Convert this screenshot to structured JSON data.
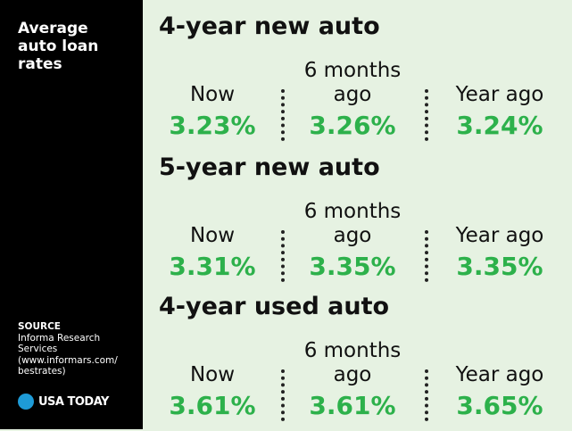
{
  "sidebar": {
    "title": "Average auto loan rates",
    "source_label": "SOURCE",
    "source_text": "Informa Research Services (www.informars.com/ bestrates)",
    "logo": "USA TODAY"
  },
  "sections": [
    {
      "heading": "4-year new auto",
      "columns": [
        {
          "label": "Now",
          "value": "3.23%"
        },
        {
          "label": "6 months ago",
          "value": "3.26%"
        },
        {
          "label": "Year ago",
          "value": "3.24%"
        }
      ]
    },
    {
      "heading": "5-year new auto",
      "columns": [
        {
          "label": "Now",
          "value": "3.31%"
        },
        {
          "label": "6 months ago",
          "value": "3.35%"
        },
        {
          "label": "Year ago",
          "value": "3.35%"
        }
      ]
    },
    {
      "heading": "4-year used auto",
      "columns": [
        {
          "label": "Now",
          "value": "3.61%"
        },
        {
          "label": "6 months ago",
          "value": "3.61%"
        },
        {
          "label": "Year ago",
          "value": "3.65%"
        }
      ]
    }
  ]
}
